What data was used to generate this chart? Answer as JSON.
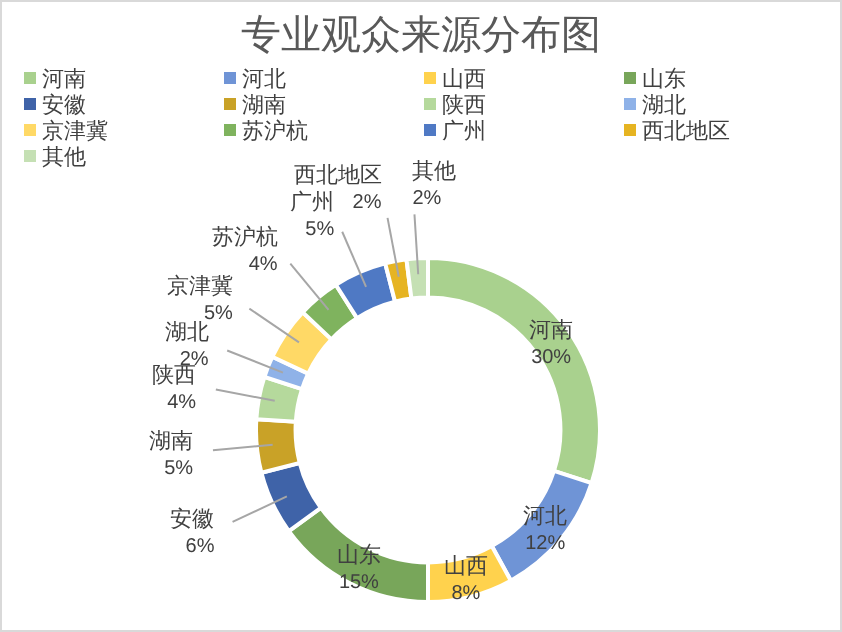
{
  "chart_data": {
    "type": "donut",
    "title": "专业观众来源分布图",
    "categories": [
      "河南",
      "河北",
      "山西",
      "山东",
      "安徽",
      "湖南",
      "陕西",
      "湖北",
      "京津冀",
      "苏沪杭",
      "广州",
      "西北地区",
      "其他"
    ],
    "values": [
      30,
      12,
      8,
      15,
      6,
      5,
      4,
      2,
      5,
      4,
      5,
      2,
      2
    ],
    "colors": [
      "#a9d18e",
      "#6f94d6",
      "#ffd24d",
      "#78a65a",
      "#3f63a8",
      "#c9a227",
      "#b5d99c",
      "#8fb2e8",
      "#ffd966",
      "#7fb35e",
      "#4f79c4",
      "#e6b422",
      "#c5e0b4"
    ],
    "value_labels": [
      "30%",
      "12%",
      "8%",
      "15%",
      "6%",
      "5%",
      "4%",
      "2%",
      "5%",
      "4%",
      "5%",
      "2%",
      "2%"
    ],
    "legend": "top"
  }
}
